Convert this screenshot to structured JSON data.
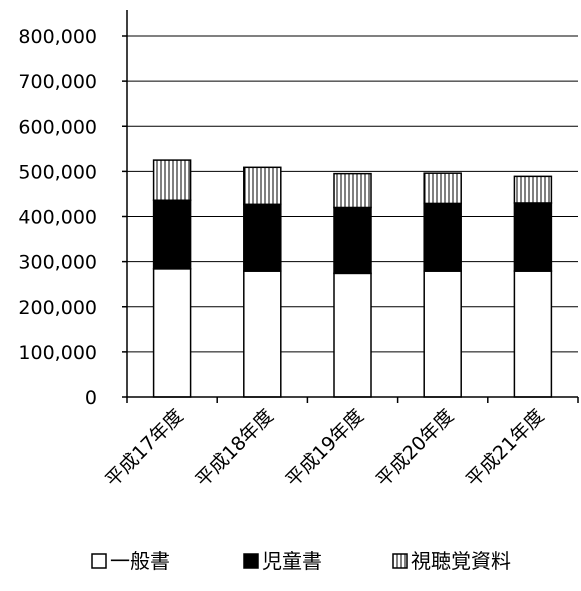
{
  "chart_data": {
    "type": "bar",
    "stacked": true,
    "categories": [
      "平成17年度",
      "平成18年度",
      "平成19年度",
      "平成20年度",
      "平成21年度"
    ],
    "series": [
      {
        "name": "一般書",
        "values": [
          284000,
          279000,
          274000,
          279000,
          279000
        ],
        "fill": "#ffffff"
      },
      {
        "name": "児童書",
        "values": [
          152000,
          148000,
          146000,
          150000,
          151000
        ],
        "fill": "#000000"
      },
      {
        "name": "視聴覚資料",
        "values": [
          89000,
          82000,
          75000,
          67000,
          59000
        ],
        "fill": "hatch"
      }
    ],
    "ylim": [
      0,
      800000
    ],
    "yticks": [
      "0",
      "100,000",
      "200,000",
      "300,000",
      "400,000",
      "500,000",
      "600,000",
      "700,000",
      "800,000"
    ],
    "ytick_values": [
      0,
      100000,
      200000,
      300000,
      400000,
      500000,
      600000,
      700000,
      800000
    ],
    "grid": true,
    "legend_position": "bottom",
    "title": "",
    "xlabel": "",
    "ylabel": ""
  },
  "colors": {
    "axis": "#000000",
    "grid": "#000000",
    "hatch_line": "#000000"
  }
}
